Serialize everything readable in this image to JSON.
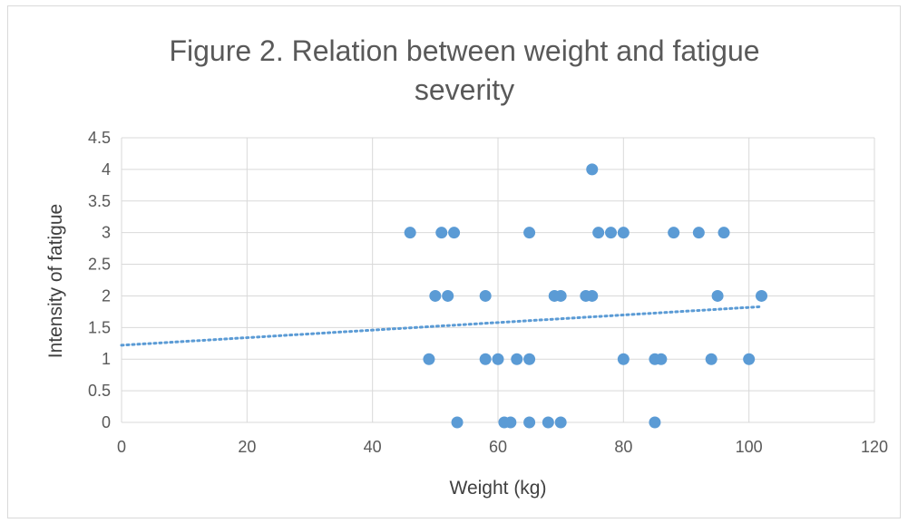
{
  "chart_data": {
    "type": "scatter",
    "title_lines": [
      "Figure 2. Relation between weight and fatigue",
      "severity"
    ],
    "xlabel": "Weight (kg)",
    "ylabel": "Intensity of fatigue",
    "xlim": [
      0,
      120
    ],
    "ylim": [
      0,
      4.5
    ],
    "x_ticks": [
      "0",
      "20",
      "40",
      "60",
      "80",
      "100",
      "120"
    ],
    "y_ticks": [
      "0",
      "0.5",
      "1",
      "1.5",
      "2",
      "2.5",
      "3",
      "3.5",
      "4",
      "4.5"
    ],
    "grid": true,
    "series": [
      {
        "points": [
          {
            "x": 46,
            "y": 3
          },
          {
            "x": 51,
            "y": 3
          },
          {
            "x": 53,
            "y": 3
          },
          {
            "x": 65,
            "y": 3
          },
          {
            "x": 76,
            "y": 3
          },
          {
            "x": 78,
            "y": 3
          },
          {
            "x": 80,
            "y": 3
          },
          {
            "x": 88,
            "y": 3
          },
          {
            "x": 92,
            "y": 3
          },
          {
            "x": 96,
            "y": 3
          },
          {
            "x": 75,
            "y": 4
          },
          {
            "x": 50,
            "y": 2
          },
          {
            "x": 52,
            "y": 2
          },
          {
            "x": 58,
            "y": 2
          },
          {
            "x": 69,
            "y": 2
          },
          {
            "x": 70,
            "y": 2
          },
          {
            "x": 74,
            "y": 2
          },
          {
            "x": 75,
            "y": 2
          },
          {
            "x": 95,
            "y": 2
          },
          {
            "x": 102,
            "y": 2
          },
          {
            "x": 49,
            "y": 1
          },
          {
            "x": 58,
            "y": 1
          },
          {
            "x": 60,
            "y": 1
          },
          {
            "x": 63,
            "y": 1
          },
          {
            "x": 65,
            "y": 1
          },
          {
            "x": 80,
            "y": 1
          },
          {
            "x": 85,
            "y": 1
          },
          {
            "x": 86,
            "y": 1
          },
          {
            "x": 94,
            "y": 1
          },
          {
            "x": 100,
            "y": 1
          },
          {
            "x": 53.5,
            "y": 0
          },
          {
            "x": 61,
            "y": 0
          },
          {
            "x": 62,
            "y": 0
          },
          {
            "x": 65,
            "y": 0
          },
          {
            "x": 68,
            "y": 0
          },
          {
            "x": 70,
            "y": 0
          },
          {
            "x": 85,
            "y": 0
          }
        ],
        "color": "#5b9bd5"
      }
    ],
    "trendline": {
      "type": "linear",
      "x": [
        0,
        102
      ],
      "y": [
        1.22,
        1.83
      ],
      "color": "#5b9bd5",
      "style": "dotted"
    }
  }
}
